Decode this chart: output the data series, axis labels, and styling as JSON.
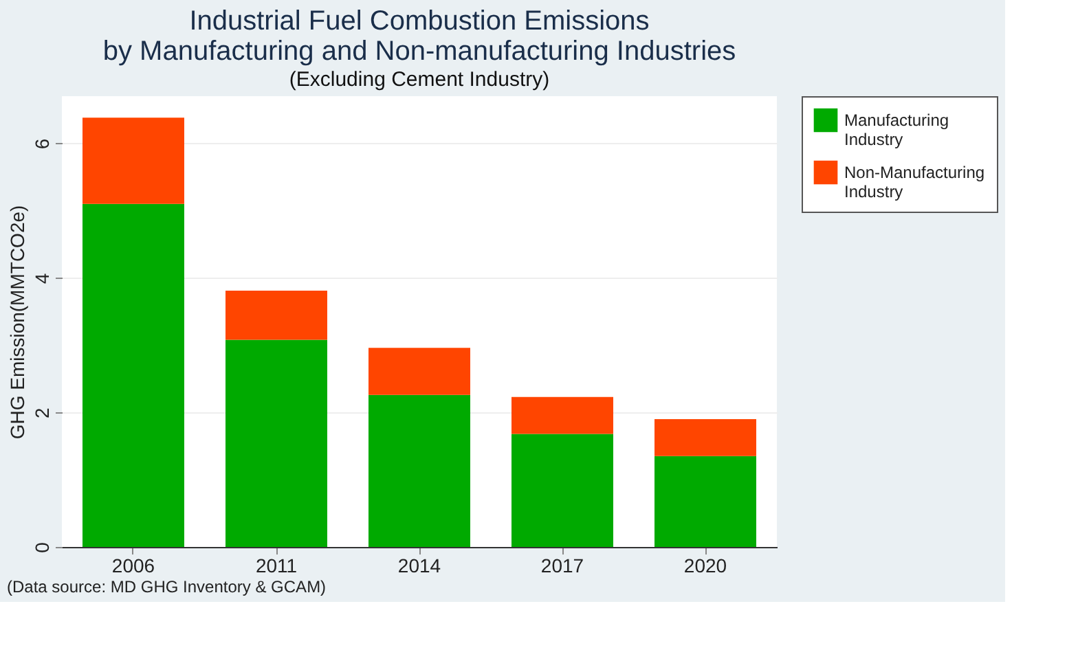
{
  "chart_data": {
    "type": "bar",
    "title": "Industrial Fuel Combustion Emissions\nby Manufacturing and Non-manufacturing Industries",
    "subtitle": "(Excluding Cement Industry)",
    "ylabel": "GHG Emission(MMTCO2e)",
    "annotations": [
      "(Data source: MD GHG Inventory & GCAM)"
    ],
    "categories": [
      "2006",
      "2011",
      "2014",
      "2017",
      "2020"
    ],
    "stacked": true,
    "series": [
      {
        "name": "Manufacturing Industry",
        "color": "#00aa00",
        "values": [
          5.1,
          3.08,
          2.26,
          1.68,
          1.35
        ]
      },
      {
        "name": "Non-Manufacturing Industry",
        "color": "#ff4500",
        "values": [
          1.28,
          0.73,
          0.7,
          0.55,
          0.55
        ]
      }
    ],
    "ylim": [
      0,
      6.7
    ],
    "yticks": [
      0,
      2,
      4,
      6
    ],
    "grid": "y",
    "legend": "right"
  }
}
